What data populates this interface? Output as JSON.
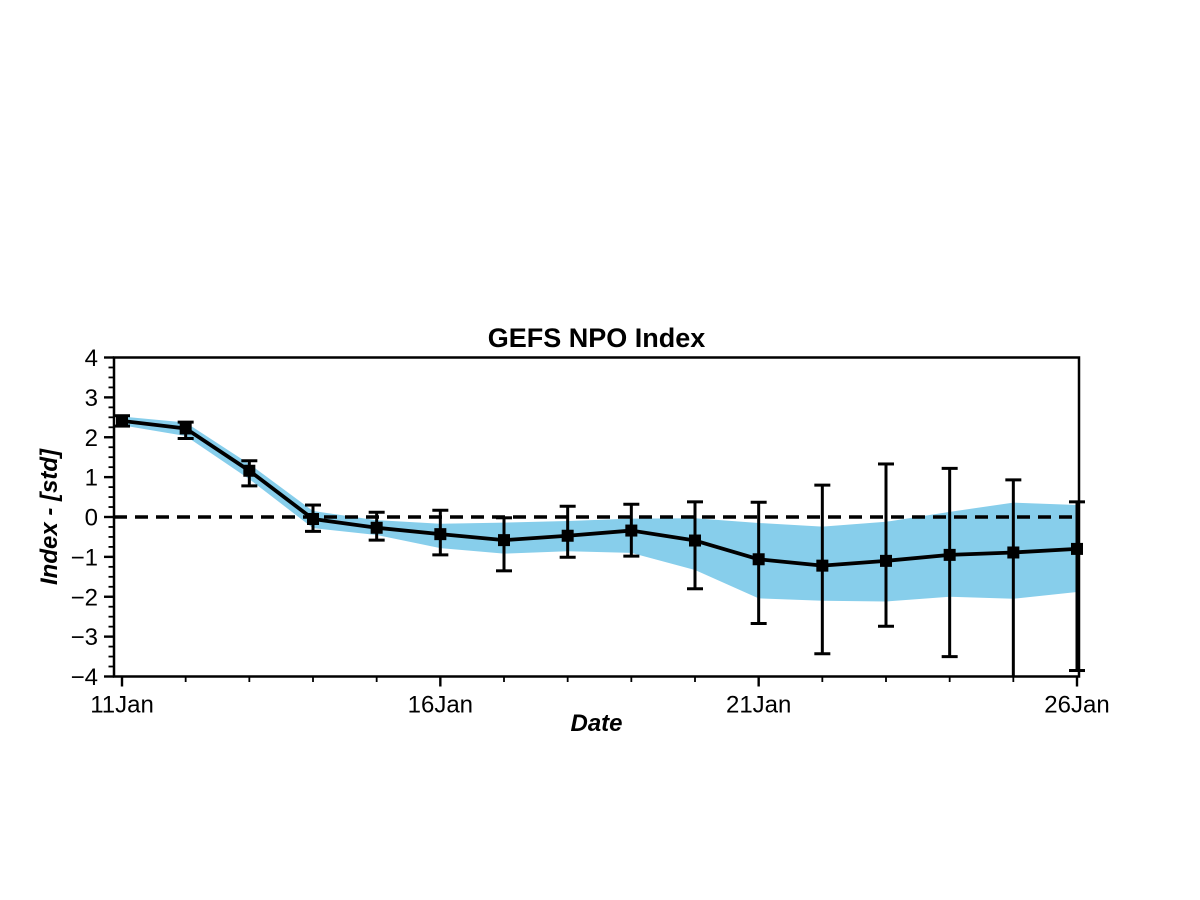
{
  "figure": {
    "title": "GEFS NPO Index",
    "xlabel": "Date",
    "ylabel": "Index - [std]"
  },
  "chart_data": {
    "type": "line",
    "title": "GEFS NPO Index",
    "xlabel": "Date",
    "ylabel": "Index - [std]",
    "grid": "off",
    "legend": "none",
    "ylim": [
      -4,
      4
    ],
    "y_major_ticks": [
      4,
      3,
      2,
      1,
      0,
      -1,
      -2,
      -3,
      -4
    ],
    "y_minor_step": 0.25,
    "x_major_ticks": [
      {
        "day": 0,
        "label": "11Jan"
      },
      {
        "day": 5,
        "label": "16Jan"
      },
      {
        "day": 10,
        "label": "21Jan"
      },
      {
        "day": 15,
        "label": "26Jan"
      }
    ],
    "x_minor_step": 1,
    "zero_line": {
      "value": 0,
      "style": "dashed",
      "color": "#000000"
    },
    "categories": [
      "11Jan",
      "12Jan",
      "13Jan",
      "14Jan",
      "15Jan",
      "16Jan",
      "17Jan",
      "18Jan",
      "19Jan",
      "20Jan",
      "21Jan",
      "22Jan",
      "23Jan",
      "24Jan",
      "25Jan",
      "26Jan"
    ],
    "x_days": [
      0,
      1,
      2,
      3,
      4,
      5,
      6,
      7,
      8,
      9,
      10,
      11,
      12,
      13,
      14,
      15
    ],
    "series": [
      {
        "name": "ensemble-mean",
        "color": "#000000",
        "marker": "square",
        "values": [
          2.41,
          2.22,
          1.16,
          -0.05,
          -0.27,
          -0.43,
          -0.58,
          -0.47,
          -0.34,
          -0.59,
          -1.06,
          -1.22,
          -1.1,
          -0.95,
          -0.89,
          -0.8
        ]
      }
    ],
    "error_bars": {
      "top": [
        2.54,
        2.38,
        1.41,
        0.3,
        0.12,
        0.17,
        -0.02,
        0.27,
        0.32,
        0.38,
        0.37,
        0.8,
        1.33,
        1.22,
        0.93,
        0.38
      ],
      "bottom": [
        2.28,
        1.97,
        0.78,
        -0.36,
        -0.58,
        -0.95,
        -1.35,
        -1.01,
        -0.98,
        -1.8,
        -2.67,
        -3.43,
        -2.74,
        -3.5,
        -4.6,
        -3.85
      ]
    },
    "band": {
      "name": "ensemble-spread",
      "color": "#87CEEB",
      "top": [
        2.52,
        2.37,
        1.33,
        0.15,
        -0.08,
        -0.17,
        -0.14,
        -0.1,
        -0.04,
        -0.03,
        -0.15,
        -0.24,
        -0.12,
        0.13,
        0.36,
        0.3
      ],
      "bottom": [
        2.3,
        2.03,
        0.95,
        -0.28,
        -0.45,
        -0.78,
        -0.92,
        -0.86,
        -0.9,
        -1.33,
        -2.04,
        -2.1,
        -2.12,
        -2.0,
        -2.05,
        -1.88
      ]
    },
    "axis_color": "#000000"
  }
}
